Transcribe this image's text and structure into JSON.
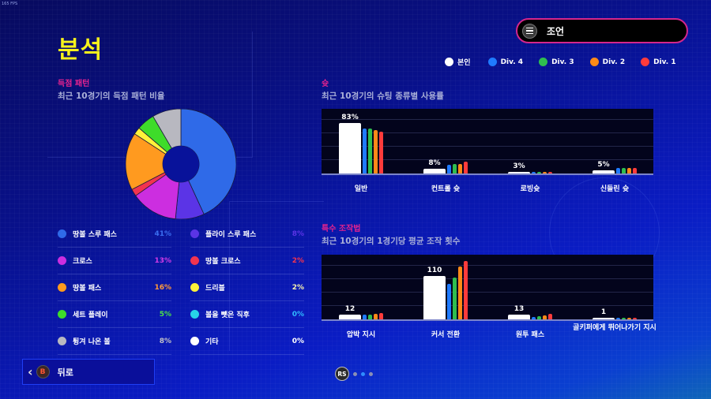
{
  "fps": "165 FPS",
  "header": {
    "title": "분석"
  },
  "coach_button": {
    "label": "조언",
    "icon": "menu-icon"
  },
  "legend": [
    {
      "label": "본인",
      "color": "#ffffff"
    },
    {
      "label": "Div. 4",
      "color": "#1f7bff"
    },
    {
      "label": "Div. 3",
      "color": "#2fbe4f"
    },
    {
      "label": "Div. 2",
      "color": "#ff8a17"
    },
    {
      "label": "Div. 1",
      "color": "#ff3b3b"
    }
  ],
  "scoring": {
    "title": "득점 패턴",
    "subtitle": "최근 10경기의 득점 패턴 비율",
    "items": [
      {
        "label": "땅볼 스루 패스",
        "value": "41%",
        "pct": 41,
        "color": "#2f6ae8",
        "value_color": "#3a6ef0"
      },
      {
        "label": "플라이 스루 패스",
        "value": "8%",
        "pct": 8,
        "color": "#5b34e6",
        "value_color": "#5b34e6"
      },
      {
        "label": "크로스",
        "value": "13%",
        "pct": 13,
        "color": "#cc2ee0",
        "value_color": "#d23be6"
      },
      {
        "label": "땅볼 크로스",
        "value": "2%",
        "pct": 2,
        "color": "#f2344f",
        "value_color": "#f2344f"
      },
      {
        "label": "땅볼 패스",
        "value": "16%",
        "pct": 16,
        "color": "#ff9a1f",
        "value_color": "#ff9a3a"
      },
      {
        "label": "드리블",
        "value": "2%",
        "pct": 2,
        "color": "#fff23a",
        "value_color": "#f5f0b0"
      },
      {
        "label": "세트 플레이",
        "value": "5%",
        "pct": 5,
        "color": "#3edc2a",
        "value_color": "#4be04a"
      },
      {
        "label": "볼을 뺏은 직후",
        "value": "0%",
        "pct": 0,
        "color": "#27d3e8",
        "value_color": "#2fb8ff"
      },
      {
        "label": "튕겨 나온 볼",
        "value": "8%",
        "pct": 8,
        "color": "#b8b8c0",
        "value_color": "#c0c0c8"
      },
      {
        "label": "기타",
        "value": "0%",
        "pct": 0,
        "color": "#ffffff",
        "value_color": "#ffffff"
      }
    ]
  },
  "shot": {
    "title": "슛",
    "subtitle": "최근 10경기의 슈팅 종류별 사용률"
  },
  "special": {
    "title": "특수 조작법",
    "subtitle": "최근 10경기의 1경기당 평균 조작 횟수"
  },
  "back_button": {
    "label": "뒤로",
    "key": "B"
  },
  "pager": {
    "key": "RS",
    "pages": 3,
    "active": 1
  },
  "chart_data": [
    {
      "type": "pie",
      "title": "득점 패턴",
      "subtitle": "최근 10경기의 득점 패턴 비율",
      "labels": [
        "땅볼 스루 패스",
        "플라이 스루 패스",
        "크로스",
        "땅볼 크로스",
        "땅볼 패스",
        "드리블",
        "세트 플레이",
        "볼을 뺏은 직후",
        "튕겨 나온 볼",
        "기타"
      ],
      "values": [
        41,
        8,
        13,
        2,
        16,
        2,
        5,
        0,
        8,
        0
      ],
      "donut": true
    },
    {
      "type": "bar",
      "title": "슛",
      "subtitle": "최근 10경기의 슈팅 종류별 사용률",
      "categories": [
        "일반",
        "컨트롤 슛",
        "로빙슛",
        "신들린 슛"
      ],
      "value_labels": [
        "83%",
        "8%",
        "3%",
        "5%"
      ],
      "series": [
        {
          "name": "본인",
          "values": [
            83,
            8,
            3,
            5
          ]
        },
        {
          "name": "Div. 4",
          "values": [
            74,
            14,
            1,
            9
          ]
        },
        {
          "name": "Div. 3",
          "values": [
            74,
            15,
            1,
            9
          ]
        },
        {
          "name": "Div. 2",
          "values": [
            71,
            16,
            1,
            9
          ]
        },
        {
          "name": "Div. 1",
          "values": [
            68,
            19,
            1,
            9
          ]
        }
      ],
      "ylim": [
        0,
        106
      ],
      "grid": true,
      "unit": "%"
    },
    {
      "type": "bar",
      "title": "특수 조작법",
      "subtitle": "최근 10경기의 1경기당 평균 조작 횟수",
      "categories": [
        "압박 지시",
        "커서 전환",
        "원투 패스",
        "골키퍼에게 뛰어나가기 지시"
      ],
      "value_labels": [
        "12",
        "110",
        "13",
        "1"
      ],
      "series": [
        {
          "name": "본인",
          "values": [
            12,
            110,
            13,
            1
          ]
        },
        {
          "name": "Div. 4",
          "values": [
            12,
            91,
            7,
            2
          ]
        },
        {
          "name": "Div. 3",
          "values": [
            12,
            107,
            9,
            1
          ]
        },
        {
          "name": "Div. 2",
          "values": [
            15,
            134,
            10,
            1
          ]
        },
        {
          "name": "Div. 1",
          "values": [
            17,
            149,
            15,
            1
          ]
        }
      ],
      "ylim": [
        0,
        165
      ],
      "grid": true
    }
  ]
}
